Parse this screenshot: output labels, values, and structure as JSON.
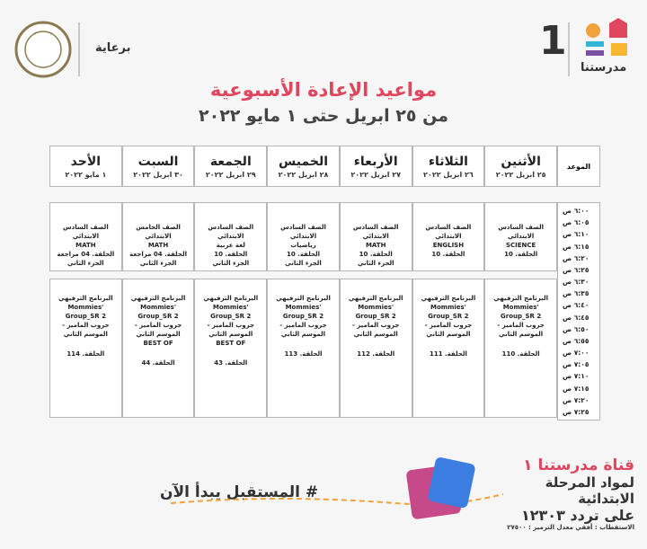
{
  "header": {
    "logo_name": "مدرستنا",
    "channel_number": "1",
    "sponsor": "برعاية"
  },
  "title": "مواعيد الإعادة الأسبوعية",
  "subtitle": "من ٢٥ ابريل حتى ١ مايو ٢٠٢٢",
  "table": {
    "time_header": "الموعد",
    "days": [
      {
        "name": "الأثنين",
        "date": "٢٥ ابريل ٢٠٢٢"
      },
      {
        "name": "الثلاثاء",
        "date": "٢٦ ابريل ٢٠٢٢"
      },
      {
        "name": "الأربعاء",
        "date": "٢٧ ابريل ٢٠٢٢"
      },
      {
        "name": "الخميس",
        "date": "٢٨ ابريل ٢٠٢٢"
      },
      {
        "name": "الجمعة",
        "date": "٢٩ ابريل ٢٠٢٢"
      },
      {
        "name": "السبت",
        "date": "٣٠ ابريل ٢٠٢٢"
      },
      {
        "name": "الأحد",
        "date": "١ مايو ٢٠٢٢"
      }
    ],
    "times": [
      "٦:٠٠ ص",
      "٦:٠٥ ص",
      "٦:١٠ ص",
      "٦:١٥ ص",
      "٦:٢٠ ص",
      "٦:٢٥ ص",
      "٦:٣٠ ص",
      "٦:٣٥ ص",
      "٦:٤٠ ص",
      "٦:٤٥ ص",
      "٦:٥٠ ص",
      "٦:٥٥ ص",
      "٧:٠٠ ص",
      "٧:٠٥ ص",
      "٧:١٠ ص",
      "٧:١٥ ص",
      "٧:٢٠ ص",
      "٧:٢٥ ص"
    ],
    "blocks": [
      [
        [
          "الصف السادس الابتدائي",
          "SCIENCE",
          "الحلقة. 10"
        ],
        [
          "الصف السادس الابتدائي",
          "ENGLISH",
          "الحلقة. 10"
        ],
        [
          "الصف السادس الابتدائي",
          "MATH",
          "الحلقة. 10",
          "الجزء الثاني"
        ],
        [
          "الصف السادس الابتدائي",
          "رياضيات",
          "الحلقة. 10",
          "الجزء الثاني"
        ],
        [
          "الصف السادس الابتدائي",
          "لغة عربية",
          "الحلقة. 10",
          "الجزء الثاني"
        ],
        [
          "الصف الخامس الابتدائي",
          "MATH",
          "الحلقة. 04 مراجعة",
          "الجزء الثاني"
        ],
        [
          "الصف السادس الابتدائي",
          "MATH",
          "الحلقة. 04 مراجعة",
          "الجزء الثاني"
        ]
      ],
      [
        [
          "البرنامج الترفيهي",
          "Mommies' Group_SR 2",
          "جروب الماميز - الموسم الثاني",
          "الحلقة. 110"
        ],
        [
          "البرنامج الترفيهي",
          "Mommies' Group_SR 2",
          "جروب الماميز - الموسم الثاني",
          "الحلقة. 111"
        ],
        [
          "البرنامج الترفيهي",
          "Mommies' Group_SR 2",
          "جروب الماميز - الموسم الثاني",
          "الحلقة. 112"
        ],
        [
          "البرنامج الترفيهي",
          "Mommies' Group_SR 2",
          "جروب الماميز - الموسم الثاني",
          "الحلقة. 113"
        ],
        [
          "البرنامج الترفيهي",
          "Mommies' Group_SR 2",
          "جروب الماميز - الموسم الثاني",
          "BEST OF",
          "الحلقة. 43"
        ],
        [
          "البرنامج الترفيهي",
          "Mommies' Group_SR 2",
          "جروب الماميز - الموسم الثاني",
          "BEST OF",
          "الحلقة. 44"
        ],
        [
          "البرنامج الترفيهي",
          "Mommies' Group_SR 2",
          "جروب الماميز - الموسم الثاني",
          "الحلقة. 114"
        ]
      ]
    ]
  },
  "footer": {
    "channel": "قناة مدرستنا ١",
    "subjects": "لمواد المرحلة الابتدائية",
    "frequency": "على تردد ١٢٣٠٣",
    "reception": "الاستقطاب : أفقي معدل الترميز : ٢٧٥٠٠",
    "slogan": "# المستقبل يبدأ الآن"
  }
}
